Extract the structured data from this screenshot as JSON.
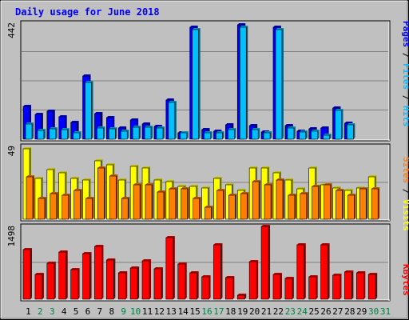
{
  "chart_data": {
    "type": "bar",
    "title": "Daily usage for June 2018",
    "categories": [
      "1",
      "2",
      "3",
      "4",
      "5",
      "6",
      "7",
      "8",
      "9",
      "10",
      "11",
      "12",
      "13",
      "14",
      "15",
      "16",
      "17",
      "18",
      "19",
      "20",
      "21",
      "22",
      "23",
      "24",
      "25",
      "26",
      "27",
      "28",
      "29",
      "30",
      "31"
    ],
    "weekend_days": [
      "2",
      "3",
      "9",
      "10",
      "16",
      "17",
      "23",
      "24",
      "30",
      "31"
    ],
    "panels": [
      {
        "id": "hits",
        "ymax_label": "442",
        "ymax": 442,
        "series": [
          {
            "name": "Pages",
            "color": "#0000ff",
            "values": [
              123,
              93,
              105,
              85,
              65,
              239,
              98,
              82,
              43,
              73,
              57,
              47,
              149,
              25,
              424,
              35,
              29,
              54,
              433,
              50,
              27,
              423,
              50,
              30,
              39,
              43,
              119,
              62,
              0,
              0,
              0
            ]
          },
          {
            "name": "Files",
            "color": "#00c0ff",
            "values": [
              58,
              33,
              39,
              36,
              25,
              214,
              42,
              40,
              31,
              44,
              44,
              41,
              139,
              23,
              414,
              24,
              24,
              36,
              423,
              37,
              24,
              414,
              42,
              27,
              29,
              16,
              110,
              55,
              0,
              0,
              0
            ]
          },
          {
            "name": "Hits",
            "color": "#00c0ff",
            "values": [
              58,
              33,
              39,
              36,
              25,
              214,
              42,
              40,
              31,
              44,
              44,
              41,
              139,
              23,
              414,
              24,
              24,
              36,
              423,
              37,
              24,
              414,
              42,
              27,
              29,
              16,
              110,
              55,
              0,
              0,
              0
            ]
          }
        ]
      },
      {
        "id": "visits",
        "ymax_label": "49",
        "ymax": 49,
        "series": [
          {
            "name": "Visits",
            "color": "#ffff00",
            "values": [
              47,
              27,
              33,
              31,
              27,
              26,
              39,
              36,
              26,
              35,
              34,
              26,
              25,
              22,
              22,
              21,
              27,
              23,
              19,
              34,
              34,
              31,
              26,
              20,
              34,
              23,
              21,
              19,
              21,
              28,
              0
            ]
          },
          {
            "name": "Sites",
            "color": "#ff8000",
            "values": [
              28,
              14,
              17,
              16,
              19,
              14,
              34,
              29,
              14,
              23,
              23,
              18,
              20,
              20,
              14,
              8,
              19,
              16,
              17,
              25,
              23,
              26,
              16,
              17,
              22,
              23,
              19,
              16,
              20,
              20,
              0
            ]
          }
        ]
      },
      {
        "id": "kbytes",
        "ymax_label": "1498",
        "ymax": 1498,
        "series": [
          {
            "name": "KBytes",
            "color": "#ff0000",
            "values": [
              1010,
              500,
              740,
              960,
              610,
              930,
              1080,
              800,
              540,
              630,
              780,
              620,
              1250,
              720,
              540,
              460,
              1110,
              440,
              80,
              760,
              1480,
              500,
              420,
              1110,
              450,
              1100,
              490,
              550,
              540,
              510,
              0
            ]
          }
        ]
      }
    ],
    "right_labels": [
      {
        "text": "Pages",
        "color": "#0000ff"
      },
      {
        "text": " / ",
        "color": "#000000"
      },
      {
        "text": "Files",
        "color": "#00c0ff"
      },
      {
        "text": " / ",
        "color": "#000000"
      },
      {
        "text": "Hits",
        "color": "#00c0ff"
      },
      {
        "text": "Sites",
        "color": "#ff8000"
      },
      {
        "text": " / ",
        "color": "#000000"
      },
      {
        "text": "Visits",
        "color": "#ffff00"
      },
      {
        "text": "KBytes",
        "color": "#ff0000"
      }
    ],
    "colors": {
      "background": "#c0c0c0",
      "plot_background": "#c0c0c0",
      "title": "#0000ff",
      "weekday_label": "#000000",
      "weekend_label": "#008040"
    }
  }
}
